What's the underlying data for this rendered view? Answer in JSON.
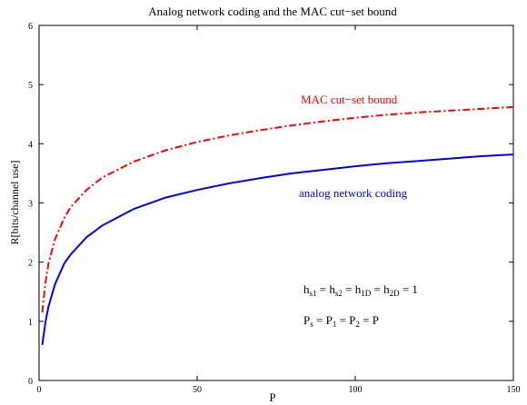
{
  "chart_data": {
    "type": "line",
    "title": "Analog network coding and the MAC cut−set bound",
    "xlabel": "P",
    "ylabel": "R[bits/channel use]",
    "xlim": [
      0,
      150
    ],
    "ylim": [
      0,
      6
    ],
    "xticks": [
      0,
      50,
      100,
      150
    ],
    "yticks": [
      0,
      1,
      2,
      3,
      4,
      5,
      6
    ],
    "grid": false,
    "series": [
      {
        "name": "MAC cut−set bound",
        "color": "#ff0000",
        "style": "dash-dot",
        "x": [
          1,
          2,
          3,
          5,
          8,
          10,
          15,
          20,
          30,
          40,
          50,
          60,
          70,
          80,
          90,
          100,
          110,
          120,
          130,
          140,
          150
        ],
        "y": [
          1.15,
          1.65,
          1.98,
          2.38,
          2.75,
          2.93,
          3.22,
          3.43,
          3.7,
          3.89,
          4.03,
          4.14,
          4.23,
          4.31,
          4.38,
          4.44,
          4.49,
          4.53,
          4.56,
          4.59,
          4.62
        ]
      },
      {
        "name": "analog network coding",
        "color": "#0000ff",
        "style": "solid",
        "x": [
          1,
          2,
          3,
          5,
          8,
          10,
          15,
          20,
          30,
          40,
          50,
          60,
          70,
          80,
          90,
          100,
          110,
          120,
          130,
          140,
          150
        ],
        "y": [
          0.6,
          0.98,
          1.25,
          1.62,
          1.98,
          2.13,
          2.42,
          2.62,
          2.9,
          3.09,
          3.22,
          3.33,
          3.42,
          3.5,
          3.56,
          3.62,
          3.67,
          3.71,
          3.75,
          3.79,
          3.82
        ]
      }
    ],
    "annotations": {
      "mac_label": "MAC cut−set bound",
      "anc_label": "analog network coding",
      "eq1": {
        "h": "h",
        "s1": "s1",
        "eq": "=",
        "s2": "s2",
        "d1": "1D",
        "d2": "2D",
        "one": "1"
      },
      "eq2": {
        "P": "P",
        "s": "s",
        "eq": "=",
        "one": "1",
        "two": "2"
      }
    }
  }
}
